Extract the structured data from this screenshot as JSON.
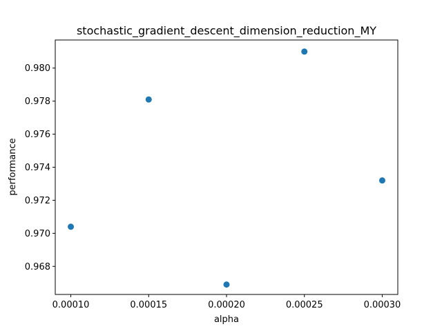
{
  "chart_data": {
    "type": "scatter",
    "title": "stochastic_gradient_descent_dimension_reduction_MY",
    "xlabel": "alpha",
    "ylabel": "performance",
    "xlim": [
      9e-05,
      0.00031
    ],
    "ylim": [
      0.9663,
      0.9817
    ],
    "xticks": [
      0.0001,
      0.00015,
      0.0002,
      0.00025,
      0.0003
    ],
    "xtick_labels": [
      "0.00010",
      "0.00015",
      "0.00020",
      "0.00025",
      "0.00030"
    ],
    "yticks": [
      0.968,
      0.97,
      0.972,
      0.974,
      0.976,
      0.978,
      0.98
    ],
    "ytick_labels": [
      "0.968",
      "0.970",
      "0.972",
      "0.974",
      "0.976",
      "0.978",
      "0.980"
    ],
    "grid": false,
    "series": [
      {
        "color": "#1f77b4",
        "x": [
          0.0001,
          0.00015,
          0.0002,
          0.00025,
          0.0003
        ],
        "y": [
          0.9704,
          0.9781,
          0.9669,
          0.981,
          0.9732
        ]
      }
    ]
  }
}
